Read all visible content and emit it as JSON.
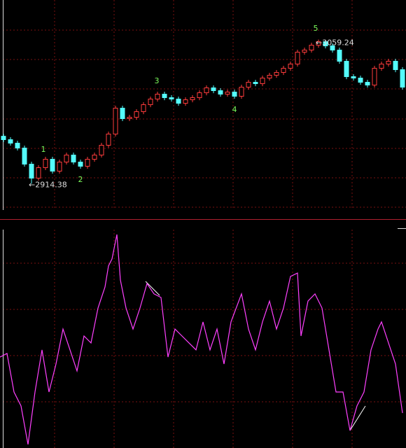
{
  "chart_data": [
    {
      "type": "candlestick",
      "open": [
        2962.1,
        2958.68,
        2955.17,
        2950.24,
        2934.07,
        2920.01,
        2930.55,
        2938.99,
        2927.04,
        2936.18,
        2943.21,
        2936.18,
        2931.96,
        2938.99,
        2943.21,
        2953.06,
        2964.31,
        2990.33,
        2979.78,
        2981.18,
        2986.81,
        2993.84,
        2999.47,
        3004.39,
        3000.87,
        2999.47,
        2995.25,
        2998.76,
        3000.87,
        3005.8,
        3010.72,
        3007.91,
        3004.39,
        3006.5,
        3002.28,
        3011.42,
        3016.34,
        3014.94,
        3020.56,
        3023.38,
        3026.19,
        3030.41,
        3034.63,
        3046.58,
        3048.69,
        3053.61,
        3057.13,
        3052.91,
        3048.69,
        3037.44,
        3021.97,
        3020.56,
        3016.34,
        3013.53,
        3030.41,
        3034.63,
        3037.44,
        3029.0
      ],
      "high": [
        2964.6,
        2961.18,
        2957.67,
        2952.74,
        2936.57,
        2933.05,
        2941.49,
        2941.49,
        2938.68,
        2945.71,
        2945.71,
        2938.68,
        2941.49,
        2945.71,
        2955.56,
        2966.81,
        2992.83,
        2992.83,
        2983.68,
        2989.31,
        2996.34,
        3001.97,
        3006.89,
        3006.89,
        3003.37,
        3001.97,
        3001.26,
        3003.37,
        3008.3,
        3013.22,
        3013.22,
        3010.41,
        3009.0,
        3009.0,
        3013.92,
        3018.84,
        3018.84,
        3023.06,
        3025.88,
        3028.69,
        3032.91,
        3037.13,
        3049.08,
        3051.19,
        3056.11,
        3059.24,
        3058.5,
        3055.41,
        3051.19,
        3039.94,
        3024.47,
        3023.06,
        3018.84,
        3032.91,
        3037.13,
        3039.94,
        3039.94,
        3031.5
      ],
      "low": [
        2956.18,
        2952.67,
        2947.74,
        2931.57,
        2914.38,
        2917.51,
        2928.05,
        2924.54,
        2924.54,
        2933.68,
        2933.68,
        2929.46,
        2929.46,
        2936.49,
        2940.71,
        2950.56,
        2961.81,
        2977.28,
        2977.28,
        2978.68,
        2984.31,
        2991.34,
        2996.97,
        2998.37,
        2996.97,
        2992.75,
        2992.75,
        2996.26,
        2998.37,
        3003.3,
        3005.41,
        3001.89,
        3001.89,
        2999.78,
        2999.78,
        3008.92,
        3012.44,
        3012.44,
        3018.06,
        3020.88,
        3023.69,
        3027.91,
        3032.13,
        3044.08,
        3046.19,
        3051.11,
        3050.41,
        3046.19,
        3034.94,
        3019.47,
        3018.06,
        3013.84,
        3011.03,
        3011.03,
        3027.91,
        3032.13,
        3026.5,
        3008.92
      ],
      "close": [
        2958.68,
        2955.17,
        2950.24,
        2934.07,
        2920.01,
        2930.55,
        2938.99,
        2927.04,
        2936.18,
        2943.21,
        2936.18,
        2931.96,
        2938.99,
        2943.21,
        2953.06,
        2964.31,
        2990.33,
        2979.78,
        2981.18,
        2986.81,
        2993.84,
        2999.47,
        3004.39,
        3000.87,
        2999.47,
        2995.25,
        2998.76,
        3000.87,
        3005.8,
        3010.72,
        3007.91,
        3004.39,
        3006.5,
        3002.28,
        3011.42,
        3016.34,
        3014.94,
        3020.56,
        3023.38,
        3026.19,
        3030.41,
        3034.63,
        3046.58,
        3048.69,
        3053.61,
        3057.13,
        3052.91,
        3048.69,
        3037.44,
        3021.97,
        3020.56,
        3016.34,
        3013.53,
        3030.41,
        3034.63,
        3037.44,
        3029.0,
        3011.42
      ],
      "up_color": "#ff3c3c",
      "down_color": "#54fcfc",
      "ylim": [
        2888,
        3099
      ],
      "annotations": [
        {
          "label": "←2914.38",
          "value": 2914.38
        },
        {
          "label": "←3059.24",
          "value": 3059.24
        }
      ],
      "wave_labels": [
        "1",
        "2",
        "3",
        "4",
        "5"
      ]
    },
    {
      "type": "line",
      "color": "#ff40ff",
      "x": [
        0,
        10,
        20,
        30,
        40,
        50,
        60,
        70,
        80,
        90,
        100,
        110,
        120,
        130,
        140,
        150,
        155,
        160,
        167,
        172,
        180,
        190,
        200,
        210,
        220,
        230,
        240,
        250,
        260,
        270,
        280,
        290,
        300,
        310,
        320,
        330,
        345,
        355,
        365,
        375,
        385,
        395,
        405,
        415,
        425,
        430,
        440,
        450,
        460,
        470,
        480,
        490,
        500,
        510,
        520,
        530,
        540,
        545,
        555,
        565,
        575
      ],
      "values": [
        40.6,
        42.2,
        25,
        18.8,
        1.6,
        25,
        43.8,
        25,
        37.5,
        53.1,
        43.8,
        34.4,
        50,
        46.9,
        62.5,
        71.9,
        81.3,
        84.4,
        95.3,
        75,
        62.5,
        53.1,
        62.5,
        73.4,
        68.8,
        67.2,
        40.6,
        53.1,
        50,
        46.9,
        43.8,
        56.3,
        43.8,
        53.1,
        37.5,
        56.3,
        68.8,
        53.1,
        43.8,
        56.3,
        65.6,
        53.1,
        62.5,
        76.6,
        78.1,
        50,
        65.6,
        68.8,
        62.5,
        43.8,
        25,
        25,
        7.8,
        18.8,
        25,
        43.8,
        53.1,
        56.3,
        46.9,
        37.5,
        15.6
      ],
      "xlim": [
        0,
        580
      ],
      "ylim": [
        0,
        100
      ]
    }
  ]
}
